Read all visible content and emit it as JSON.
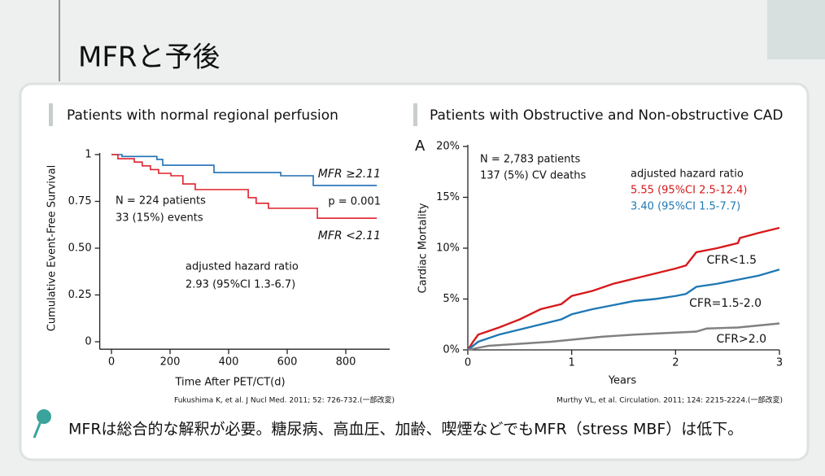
{
  "title": "MFRと予後",
  "chart_data": [
    {
      "type": "step",
      "title": "Patients with normal regional perfusion",
      "xlabel": "Time After PET/CT(d)",
      "ylabel": "Cumulative Event-Free Survival",
      "xlim": [
        -40,
        950
      ],
      "ylim": [
        -0.04,
        1
      ],
      "xticks": [
        0,
        200,
        400,
        600,
        800
      ],
      "yticks": [
        0,
        0.25,
        {
          "value": 0.5,
          "label": "0.50"
        },
        0.75,
        1
      ],
      "series": [
        {
          "name": "MFR ≥2.11",
          "color": "#1f6fb4",
          "x": [
            0,
            36,
            155,
            175,
            350,
            578,
            689,
            906
          ],
          "values": [
            1,
            0.99,
            0.974,
            0.943,
            0.904,
            0.887,
            0.835,
            0.835
          ]
        },
        {
          "name": "MFR <2.11",
          "color": "#e0222e",
          "x": [
            0,
            22,
            78,
            105,
            133,
            161,
            203,
            244,
            286,
            467,
            494,
            536,
            703,
            906
          ],
          "values": [
            1,
            0.978,
            0.96,
            0.94,
            0.92,
            0.9,
            0.887,
            0.843,
            0.813,
            0.77,
            0.74,
            0.713,
            0.66,
            0.66
          ]
        }
      ],
      "annotations": [
        {
          "text": "N = 224 patients"
        },
        {
          "text": "33 (15%) events"
        },
        {
          "text": "p = 0.001"
        },
        {
          "text": "adjusted hazard ratio"
        },
        {
          "text": "2.93 (95%CI 1.3-6.7)"
        }
      ],
      "source": "Fukushima K, et al. J Nucl Med. 2011; 52: 726-732.(一部改変)"
    },
    {
      "type": "line",
      "panel_label": "A",
      "title": "Patients with Obstructive and Non-obstructive CAD",
      "xlabel": "Years",
      "ylabel": "Cardiac Mortality",
      "xlim": [
        0,
        3
      ],
      "ylim": [
        0,
        20
      ],
      "xticks": [
        0,
        1,
        2,
        3
      ],
      "yticks": [
        {
          "value": 0,
          "label": "0%"
        },
        {
          "value": 5,
          "label": "5%"
        },
        {
          "value": 10,
          "label": "10%"
        },
        {
          "value": 15,
          "label": "15%"
        },
        {
          "value": 20,
          "label": "20%"
        }
      ],
      "series": [
        {
          "name": "CFR<1.5",
          "color": "#d7191c",
          "x": [
            0,
            0.05,
            0.1,
            0.3,
            0.5,
            0.7,
            0.9,
            1.0,
            1.2,
            1.4,
            1.6,
            1.8,
            2.0,
            2.1,
            2.2,
            2.4,
            2.6,
            2.62,
            2.8,
            3
          ],
          "values": [
            0,
            0.8,
            1.5,
            2.2,
            3,
            4,
            4.5,
            5.3,
            5.8,
            6.5,
            7,
            7.5,
            8,
            8.3,
            9.6,
            10,
            10.5,
            11,
            11.5,
            12
          ]
        },
        {
          "name": "CFR=1.5-2.0",
          "color": "#1f78b4",
          "x": [
            0,
            0.1,
            0.3,
            0.5,
            0.7,
            0.9,
            1,
            1.2,
            1.4,
            1.6,
            1.8,
            2,
            2.1,
            2.2,
            2.4,
            2.6,
            2.8,
            3
          ],
          "values": [
            0,
            0.8,
            1.5,
            2,
            2.5,
            3,
            3.5,
            4,
            4.4,
            4.8,
            5,
            5.3,
            5.5,
            6.2,
            6.5,
            6.9,
            7.3,
            7.9
          ]
        },
        {
          "name": "CFR>2.0",
          "color": "#808080",
          "x": [
            0,
            0.2,
            0.5,
            0.8,
            1,
            1.3,
            1.6,
            2,
            2.2,
            2.3,
            2.6,
            3
          ],
          "values": [
            0,
            0.4,
            0.6,
            0.8,
            1.0,
            1.3,
            1.5,
            1.7,
            1.8,
            2.1,
            2.2,
            2.6
          ]
        }
      ],
      "annotations": [
        {
          "text": "N = 2,783 patients"
        },
        {
          "text": "137 (5%) CV deaths"
        },
        {
          "text": "adjusted hazard ratio"
        },
        {
          "text": "5.55 (95%CI 2.5-12.4)",
          "color": "#d7191c"
        },
        {
          "text": "3.40 (95%CI 1.5-7.7)",
          "color": "#1f78b4"
        }
      ],
      "source": "Murthy VL, et al. Circulation. 2011; 124: 2215-2224.(一部改変)"
    }
  ],
  "note": "MFRは総合的な解釈が必要。糖尿病、高血圧、加齢、喫煙などでもMFR（stress MBF）は低下。"
}
